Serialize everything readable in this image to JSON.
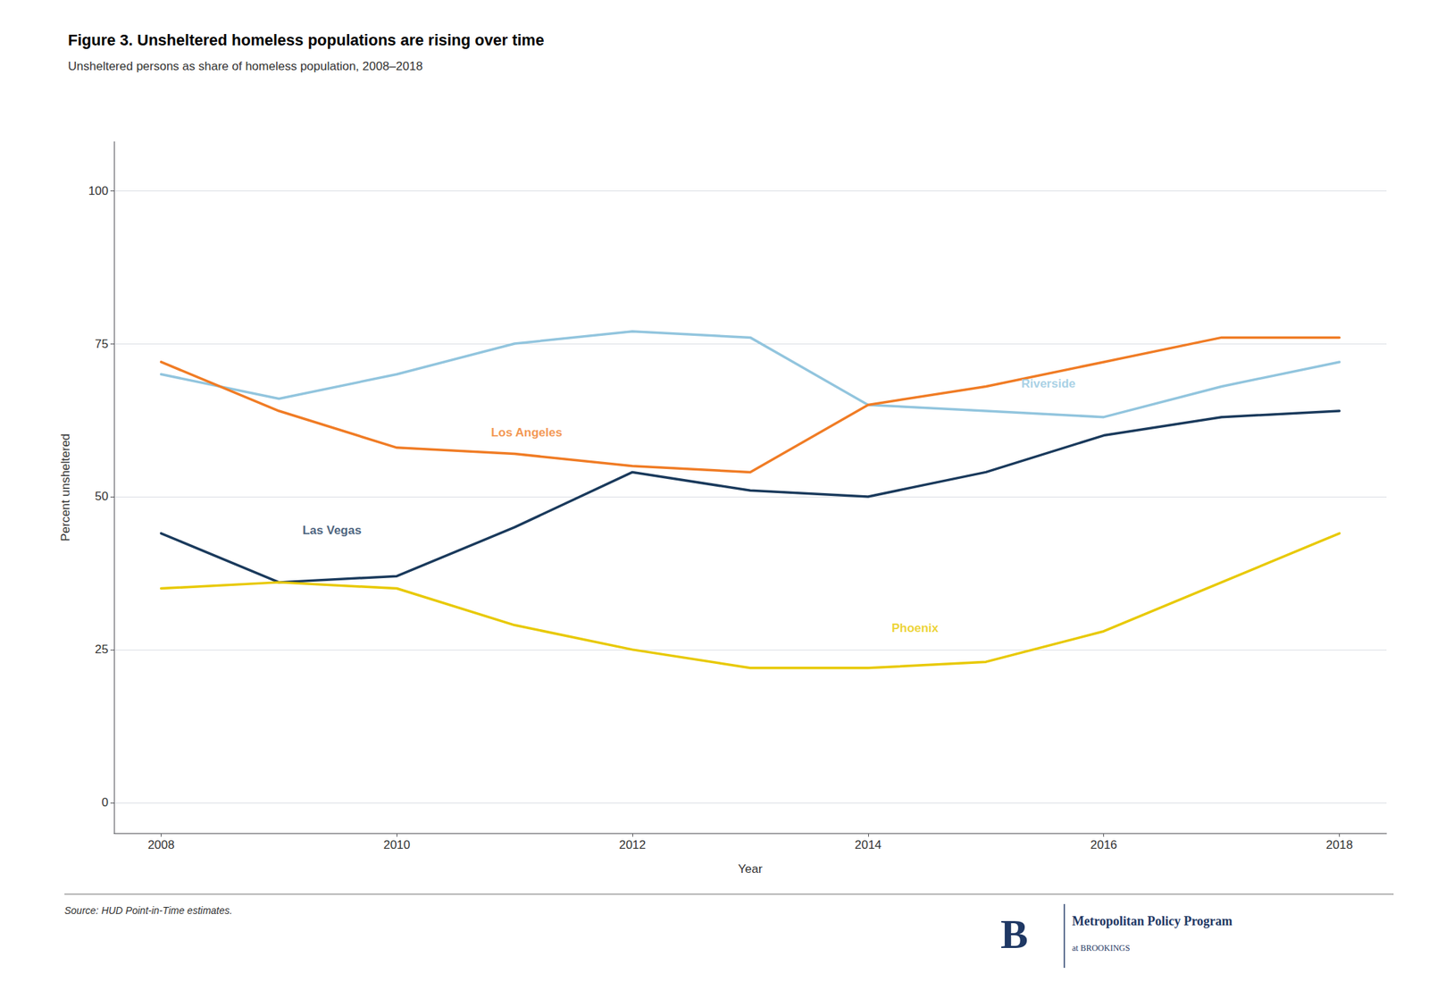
{
  "chart_data": {
    "type": "line",
    "title": "Figure 3. Unsheltered homeless populations are rising over time",
    "subtitle": "Unsheltered persons as share of homeless population, 2008–2018",
    "xlabel": "Year",
    "ylabel": "Percent unsheltered",
    "x": [
      2008,
      2009,
      2010,
      2011,
      2012,
      2013,
      2014,
      2015,
      2016,
      2017,
      2018
    ],
    "series": [
      {
        "name": "Riverside",
        "color": "#92c5de",
        "values": [
          70,
          66,
          70,
          75,
          77,
          76,
          65,
          64,
          63,
          68,
          72
        ]
      },
      {
        "name": "Los Angeles",
        "color": "#f07c25",
        "values": [
          72,
          64,
          58,
          57,
          55,
          54,
          65,
          68,
          72,
          76,
          76
        ]
      },
      {
        "name": "Las Vegas",
        "color": "#1a3a5c",
        "values": [
          44,
          36,
          37,
          45,
          54,
          51,
          50,
          54,
          60,
          63,
          64
        ]
      },
      {
        "name": "Phoenix",
        "color": "#e8c900",
        "values": [
          35,
          36,
          35,
          29,
          25,
          22,
          22,
          23,
          28,
          36,
          44
        ]
      }
    ],
    "annotations": [
      {
        "text": "Riverside",
        "x": 2015.3,
        "y": 68.5,
        "color": "#92c5de"
      },
      {
        "text": "Los Angeles",
        "x": 2010.8,
        "y": 60.5,
        "color": "#f07c25"
      },
      {
        "text": "Las Vegas",
        "x": 2009.2,
        "y": 44.5,
        "color": "#1a3a5c"
      },
      {
        "text": "Phoenix",
        "x": 2014.2,
        "y": 28.5,
        "color": "#e8c900"
      }
    ],
    "xlim": [
      2007.6,
      2018.4
    ],
    "xticks": [
      2008,
      2010,
      2012,
      2014,
      2016,
      2018
    ],
    "ylim": [
      -5,
      108
    ],
    "yticks": [
      0,
      25,
      50,
      75,
      100
    ],
    "grid": true,
    "source": "Source: HUD Point-in-Time estimates.",
    "logo": {
      "mark": "B",
      "name": "Metropolitan Policy Program",
      "tagline": "at BROOKINGS",
      "color": "#1f3864"
    }
  }
}
